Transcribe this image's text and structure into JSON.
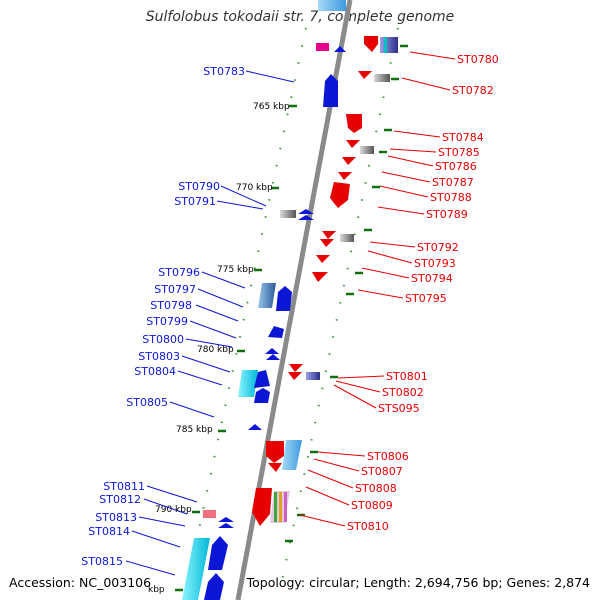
{
  "title": "Sulfolobus tokodaii str. 7, complete genome",
  "footer": {
    "accession": "Accession: NC_003106",
    "stats": "Topology: circular; Length: 2,694,756 bp; Genes: 2,874"
  },
  "colors": {
    "forward": "#0b17d4",
    "reverse": "#e60000",
    "kbp_tick": "#107010",
    "axis": "#8a8a8a"
  },
  "kbp_labels": [
    "765 kbp",
    "770 kbp",
    "775 kbp",
    "780 kbp",
    "785 kbp",
    "790 kbp",
    "kbp"
  ],
  "left_genes": [
    "ST0783",
    "ST0790",
    "ST0791",
    "ST0796",
    "ST0797",
    "ST0798",
    "ST0799",
    "ST0800",
    "ST0803",
    "ST0804",
    "ST0805",
    "ST0811",
    "ST0812",
    "ST0813",
    "ST0814",
    "ST0815"
  ],
  "right_genes": [
    "ST0780",
    "ST0782",
    "ST0784",
    "ST0785",
    "ST0786",
    "ST0787",
    "ST0788",
    "ST0789",
    "ST0792",
    "ST0793",
    "ST0794",
    "ST0795",
    "ST0801",
    "ST0802",
    "STS095",
    "ST0806",
    "ST0807",
    "ST0808",
    "ST0809",
    "ST0810"
  ]
}
